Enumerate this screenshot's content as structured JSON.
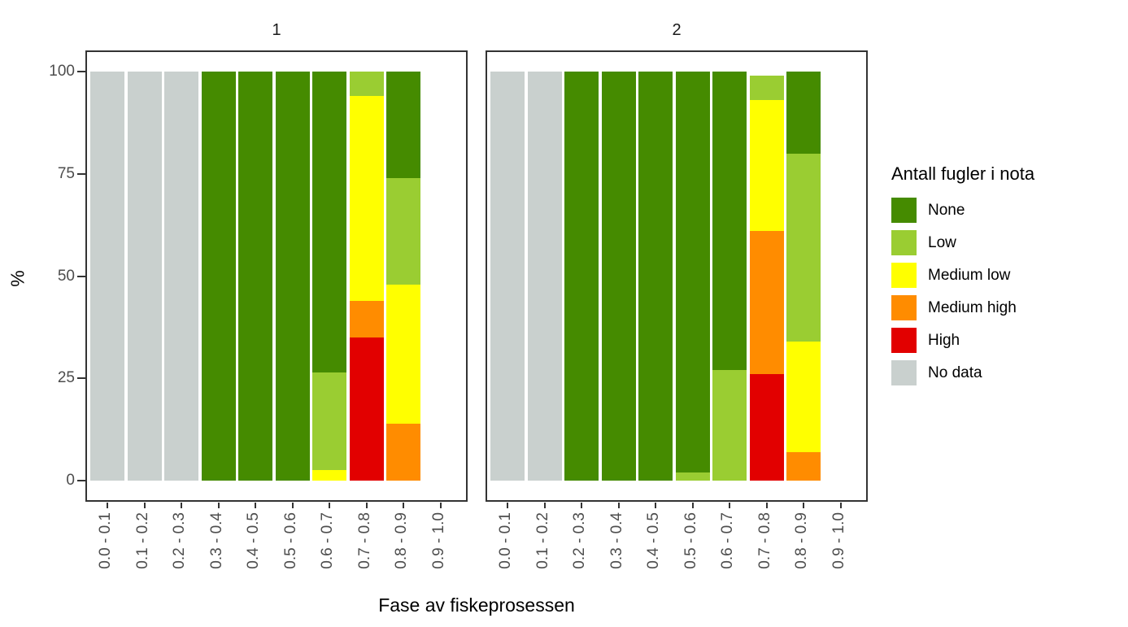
{
  "chart_data": {
    "type": "bar",
    "subtype": "stacked-percent",
    "title": "",
    "xlabel": "Fase av fiskeprosessen",
    "ylabel": "%",
    "legend_title": "Antall fugler i nota",
    "legend_position": "right",
    "ylim": [
      0,
      100
    ],
    "yticks": [
      0,
      25,
      50,
      75,
      100
    ],
    "grid": "off",
    "facet_titles": [
      "1",
      "2"
    ],
    "categories": [
      "0.0 - 0.1",
      "0.1 - 0.2",
      "0.2 - 0.3",
      "0.3 - 0.4",
      "0.4 - 0.5",
      "0.5 - 0.6",
      "0.6 - 0.7",
      "0.7 - 0.8",
      "0.8 - 0.9",
      "0.9 - 1.0"
    ],
    "series_order": [
      "None",
      "Low",
      "Medium low",
      "Medium high",
      "High",
      "No data"
    ],
    "stack_order_bottom_to_top": [
      "No data",
      "High",
      "Medium high",
      "Medium low",
      "Low",
      "None"
    ],
    "colors": {
      "None": "#458B00",
      "Low": "#9ACD32",
      "Medium low": "#FFFF00",
      "Medium high": "#FF8C00",
      "High": "#E20000",
      "No data": "#C9D0CE"
    },
    "facets": [
      {
        "title": "1",
        "series": [
          {
            "name": "None",
            "values": [
              0,
              0,
              0,
              100,
              100,
              100,
              73.5,
              0,
              26,
              0
            ]
          },
          {
            "name": "Low",
            "values": [
              0,
              0,
              0,
              0,
              0,
              0,
              24,
              6,
              26,
              0
            ]
          },
          {
            "name": "Medium low",
            "values": [
              0,
              0,
              0,
              0,
              0,
              0,
              2.5,
              50,
              34,
              0
            ]
          },
          {
            "name": "Medium high",
            "values": [
              0,
              0,
              0,
              0,
              0,
              0,
              0,
              9,
              14,
              0
            ]
          },
          {
            "name": "High",
            "values": [
              0,
              0,
              0,
              0,
              0,
              0,
              0,
              35,
              0,
              0
            ]
          },
          {
            "name": "No data",
            "values": [
              100,
              100,
              100,
              0,
              0,
              0,
              0,
              0,
              0,
              0
            ]
          }
        ]
      },
      {
        "title": "2",
        "series": [
          {
            "name": "None",
            "values": [
              0,
              0,
              100,
              100,
              100,
              98,
              73,
              0,
              20,
              0
            ]
          },
          {
            "name": "Low",
            "values": [
              0,
              0,
              0,
              0,
              0,
              2,
              27,
              6,
              46,
              0
            ]
          },
          {
            "name": "Medium low",
            "values": [
              0,
              0,
              0,
              0,
              0,
              0,
              0,
              32,
              27,
              0
            ]
          },
          {
            "name": "Medium high",
            "values": [
              0,
              0,
              0,
              0,
              0,
              0,
              0,
              35,
              7,
              0
            ]
          },
          {
            "name": "High",
            "values": [
              0,
              0,
              0,
              0,
              0,
              0,
              0,
              26,
              0,
              0
            ]
          },
          {
            "name": "No data",
            "values": [
              100,
              100,
              0,
              0,
              0,
              0,
              0,
              0,
              0,
              0
            ]
          }
        ]
      }
    ]
  }
}
